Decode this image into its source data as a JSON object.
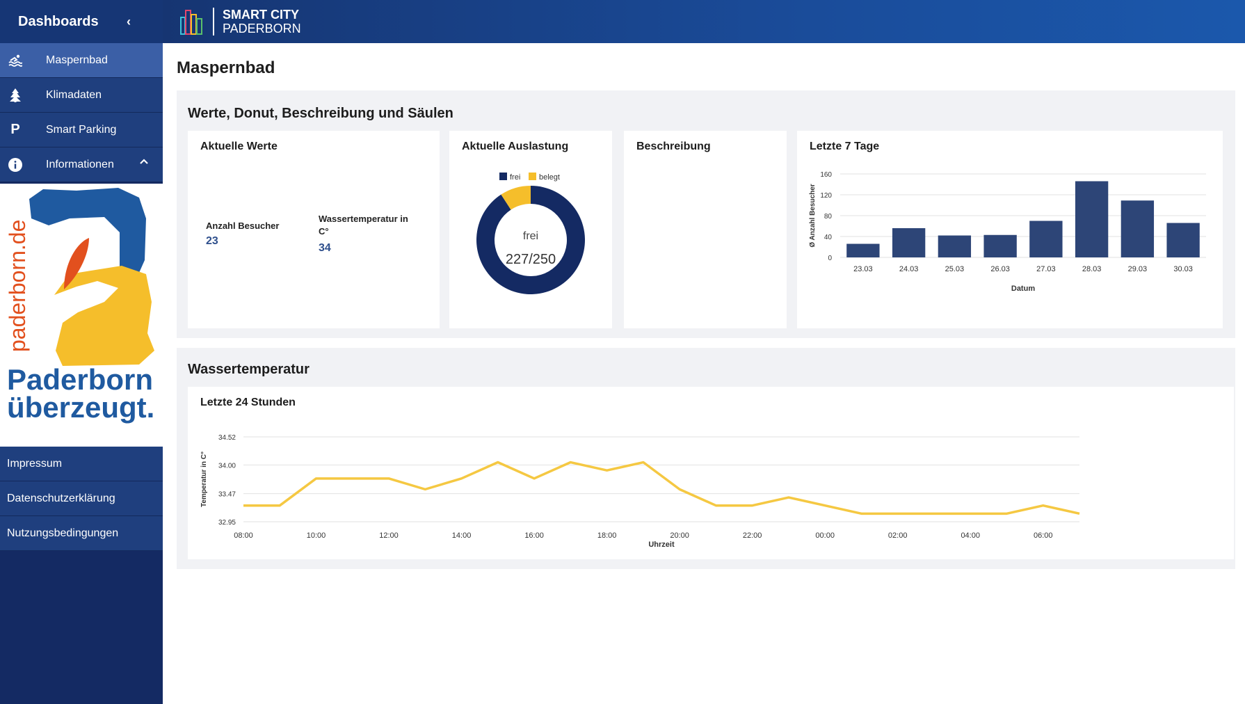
{
  "sidebar": {
    "title": "Dashboards",
    "items": [
      {
        "label": "Maspernbad"
      },
      {
        "label": "Klimadaten"
      },
      {
        "label": "Smart Parking"
      },
      {
        "label": "Informationen"
      }
    ],
    "logo": {
      "url_text": "paderborn.de",
      "slogan_1": "Paderborn",
      "slogan_2": "überzeugt."
    },
    "links": [
      {
        "label": "Impressum"
      },
      {
        "label": "Datenschutzerklärung"
      },
      {
        "label": "Nutzungsbedingungen"
      }
    ]
  },
  "header": {
    "brand_1": "SMART CITY",
    "brand_2": "PADERBORN"
  },
  "page": {
    "title": "Maspernbad",
    "section1": {
      "title": "Werte, Donut, Beschreibung und Säulen",
      "current": {
        "title": "Aktuelle Werte",
        "visitors_label": "Anzahl Besucher",
        "visitors_value": "23",
        "temp_label": "Wassertemperatur in C°",
        "temp_value": "34"
      },
      "occupancy": {
        "title": "Aktuelle Auslastung",
        "legend_free": "frei",
        "legend_taken": "belegt",
        "center_label": "frei",
        "center_value": "227/250"
      },
      "description": {
        "title": "Beschreibung"
      },
      "last7": {
        "title": "Letzte 7 Tage"
      }
    },
    "section2": {
      "title": "Wassertemperatur",
      "last24": {
        "title": "Letzte 24 Stunden"
      }
    }
  },
  "colors": {
    "navy": "#142a63",
    "bar": "#2d4577",
    "line": "#f5c842",
    "yellow": "#f5be2b"
  },
  "chart_data": [
    {
      "type": "pie",
      "categories": [
        "frei",
        "belegt"
      ],
      "values": [
        227,
        23
      ],
      "total": 250
    },
    {
      "type": "bar",
      "categories": [
        "23.03",
        "24.03",
        "25.03",
        "26.03",
        "27.03",
        "28.03",
        "29.03",
        "30.03"
      ],
      "values": [
        26,
        56,
        42,
        43,
        70,
        146,
        109,
        66
      ],
      "xlabel": "Datum",
      "ylabel": "Ø Anzahl Besucher",
      "yticks": [
        0,
        40,
        80,
        120,
        160
      ],
      "ylim": [
        0,
        160
      ]
    },
    {
      "type": "line",
      "x": [
        "08:00",
        "09:00",
        "10:00",
        "11:00",
        "12:00",
        "13:00",
        "14:00",
        "15:00",
        "16:00",
        "17:00",
        "18:00",
        "19:00",
        "20:00",
        "21:00",
        "22:00",
        "23:00",
        "00:00",
        "01:00",
        "02:00",
        "03:00",
        "04:00",
        "05:00",
        "06:00",
        "07:00"
      ],
      "xticks": [
        "08:00",
        "10:00",
        "12:00",
        "14:00",
        "16:00",
        "18:00",
        "20:00",
        "22:00",
        "00:00",
        "02:00",
        "04:00",
        "06:00"
      ],
      "values": [
        33.25,
        33.25,
        33.75,
        33.75,
        33.75,
        33.55,
        33.75,
        34.05,
        33.75,
        34.05,
        33.9,
        34.05,
        33.55,
        33.25,
        33.25,
        33.4,
        33.25,
        33.1,
        33.1,
        33.1,
        33.1,
        33.1,
        33.25,
        33.1
      ],
      "xlabel": "Uhrzeit",
      "ylabel": "Temperatur in C°",
      "yticks": [
        "32.95",
        "33.47",
        "34.00",
        "34.52"
      ],
      "ylim": [
        32.95,
        34.52
      ]
    }
  ]
}
